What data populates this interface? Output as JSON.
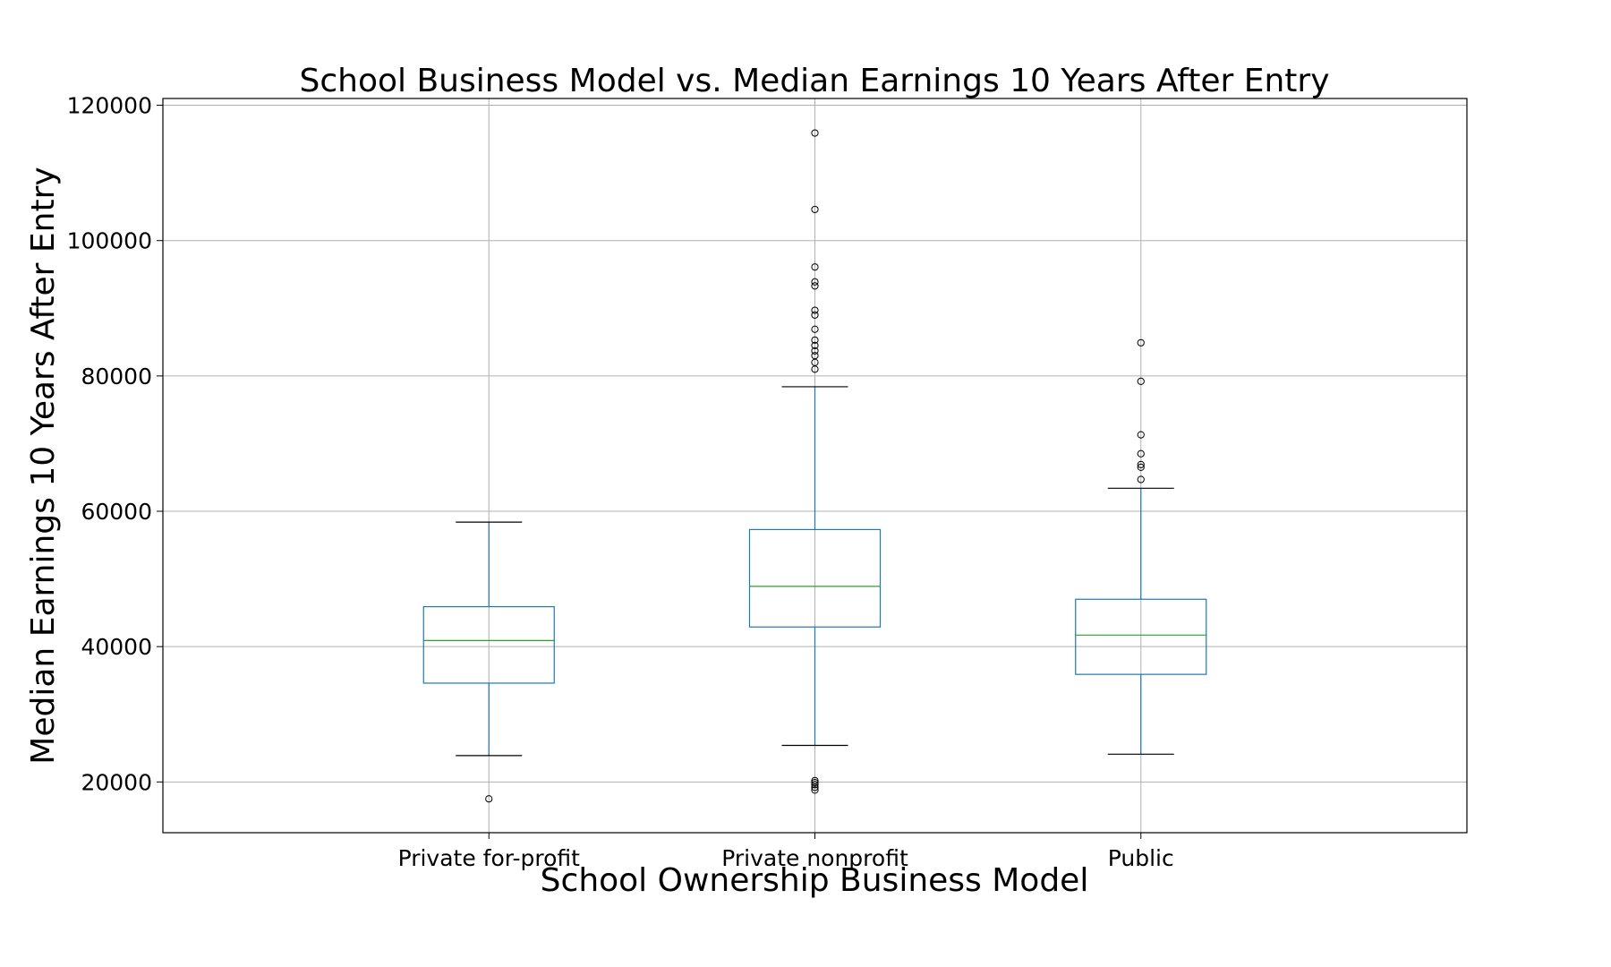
{
  "chart_data": {
    "type": "box",
    "title": "School Business Model vs. Median Earnings 10 Years After Entry",
    "xlabel": "School Ownership Business Model",
    "ylabel": "Median Earnings 10 Years After Entry",
    "ylim": [
      12500,
      121000
    ],
    "yticks": [
      20000,
      40000,
      60000,
      80000,
      100000,
      120000
    ],
    "grid": true,
    "colors": {
      "box": "#1f77b4",
      "median": "#2ca02c",
      "whisker_cap": "#000000",
      "flier": "#000000"
    },
    "categories": [
      "Private for-profit",
      "Private nonprofit",
      "Public"
    ],
    "boxes": [
      {
        "category": "Private for-profit",
        "whisker_low": 23900,
        "q1": 34600,
        "median": 40900,
        "q3": 45900,
        "whisker_high": 58400,
        "outliers": [
          17500
        ]
      },
      {
        "category": "Private nonprofit",
        "whisker_low": 25400,
        "q1": 42900,
        "median": 48900,
        "q3": 57300,
        "whisker_high": 78400,
        "outliers": [
          18800,
          19200,
          19600,
          19900,
          20200,
          81000,
          82000,
          83000,
          83700,
          84500,
          85300,
          86900,
          89000,
          89700,
          93300,
          93900,
          96100,
          104600,
          115900
        ]
      },
      {
        "category": "Public",
        "whisker_low": 24100,
        "q1": 35900,
        "median": 41700,
        "q3": 47000,
        "whisker_high": 63400,
        "outliers": [
          64700,
          66500,
          66900,
          68500,
          71300,
          79200,
          84900
        ]
      }
    ]
  }
}
